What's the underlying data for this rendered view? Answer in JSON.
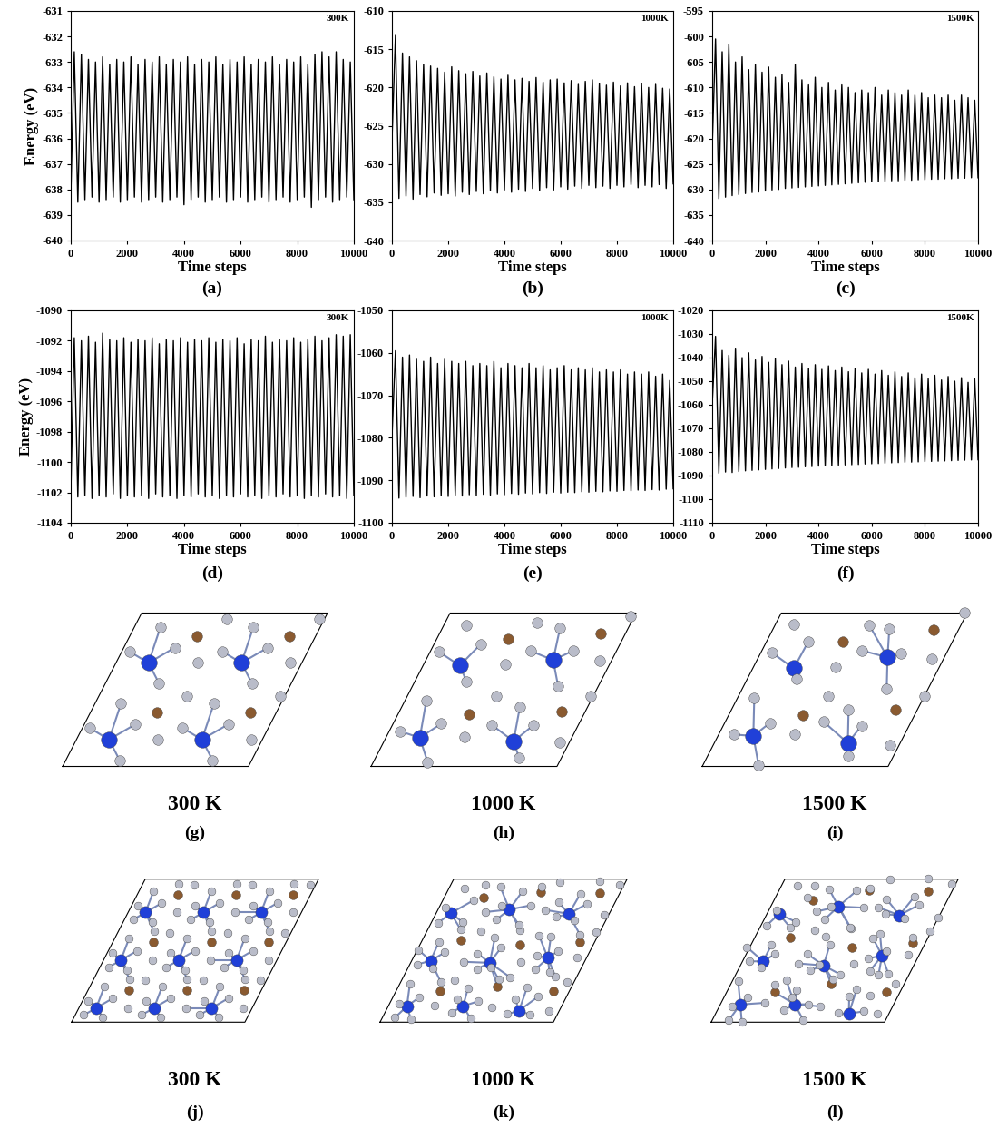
{
  "chart_data": [
    {
      "type": "line",
      "panel": "(a)",
      "annotation": "300K",
      "x_label": "Time steps",
      "y_label": "Energy (eV)",
      "color": "#000000",
      "xlim": [
        0,
        10000
      ],
      "xticks": [
        0,
        2000,
        4000,
        6000,
        8000,
        10000
      ],
      "ylim": [
        -640,
        -631
      ],
      "yticks": [
        -640,
        -639,
        -638,
        -637,
        -636,
        -635,
        -634,
        -633,
        -632,
        -631
      ],
      "x": [
        0,
        125,
        250,
        375,
        500,
        625,
        750,
        875,
        1000,
        1125,
        1250,
        1375,
        1500,
        1625,
        1750,
        1875,
        2000,
        2125,
        2250,
        2375,
        2500,
        2625,
        2750,
        2875,
        3000,
        3125,
        3250,
        3375,
        3500,
        3625,
        3750,
        3875,
        4000,
        4125,
        4250,
        4375,
        4500,
        4625,
        4750,
        4875,
        5000,
        5125,
        5250,
        5375,
        5500,
        5625,
        5750,
        5875,
        6000,
        6125,
        6250,
        6375,
        6500,
        6625,
        6750,
        6875,
        7000,
        7125,
        7250,
        7375,
        7500,
        7625,
        7750,
        7875,
        8000,
        8125,
        8250,
        8375,
        8500,
        8625,
        8750,
        8875,
        9000,
        9125,
        9250,
        9375,
        9500,
        9625,
        9750,
        9875,
        10000
      ],
      "values": [
        -638.3,
        -632.6,
        -638.5,
        -632.7,
        -638.4,
        -632.9,
        -638.3,
        -633.0,
        -638.5,
        -632.8,
        -638.4,
        -633.1,
        -638.3,
        -632.9,
        -638.5,
        -633.0,
        -638.4,
        -632.8,
        -638.3,
        -633.1,
        -638.5,
        -632.9,
        -638.4,
        -633.0,
        -638.3,
        -632.8,
        -638.5,
        -633.1,
        -638.4,
        -632.9,
        -638.3,
        -633.0,
        -638.6,
        -632.8,
        -638.4,
        -633.1,
        -638.3,
        -632.9,
        -638.5,
        -633.0,
        -638.4,
        -632.8,
        -638.3,
        -633.1,
        -638.5,
        -632.9,
        -638.4,
        -633.0,
        -638.3,
        -632.8,
        -638.5,
        -633.1,
        -638.4,
        -632.9,
        -638.3,
        -633.0,
        -638.5,
        -632.8,
        -638.4,
        -633.1,
        -638.3,
        -632.9,
        -638.5,
        -633.0,
        -638.4,
        -632.8,
        -638.3,
        -633.1,
        -638.7,
        -632.7,
        -638.4,
        -632.6,
        -638.3,
        -632.8,
        -638.5,
        -632.6,
        -638.4,
        -632.9,
        -638.3,
        -633.0,
        -638.4
      ]
    },
    {
      "type": "line",
      "panel": "(b)",
      "annotation": "1000K",
      "x_label": "Time steps",
      "color": "#000000",
      "xlim": [
        0,
        10000
      ],
      "xticks": [
        0,
        2000,
        4000,
        6000,
        8000,
        10000
      ],
      "ylim": [
        -640,
        -610
      ],
      "yticks": [
        -640,
        -635,
        -630,
        -625,
        -620,
        -615,
        -610
      ],
      "x": [
        0,
        125,
        250,
        375,
        500,
        625,
        750,
        875,
        1000,
        1125,
        1250,
        1375,
        1500,
        1625,
        1750,
        1875,
        2000,
        2125,
        2250,
        2375,
        2500,
        2625,
        2750,
        2875,
        3000,
        3125,
        3250,
        3375,
        3500,
        3625,
        3750,
        3875,
        4000,
        4125,
        4250,
        4375,
        4500,
        4625,
        4750,
        4875,
        5000,
        5125,
        5250,
        5375,
        5500,
        5625,
        5750,
        5875,
        6000,
        6125,
        6250,
        6375,
        6500,
        6625,
        6750,
        6875,
        7000,
        7125,
        7250,
        7375,
        7500,
        7625,
        7750,
        7875,
        8000,
        8125,
        8250,
        8375,
        8500,
        8625,
        8750,
        8875,
        9000,
        9125,
        9250,
        9375,
        9500,
        9625,
        9750,
        9875,
        10000
      ],
      "values": [
        -627.0,
        -613.2,
        -634.5,
        -615.5,
        -634.2,
        -616.0,
        -634.6,
        -616.5,
        -634.0,
        -617.0,
        -634.3,
        -617.2,
        -633.8,
        -617.5,
        -634.1,
        -618.0,
        -633.9,
        -617.3,
        -634.2,
        -617.8,
        -633.7,
        -618.2,
        -634.0,
        -617.9,
        -633.6,
        -618.5,
        -633.9,
        -618.1,
        -633.5,
        -618.6,
        -633.8,
        -618.9,
        -633.4,
        -618.4,
        -633.7,
        -619.0,
        -633.3,
        -618.8,
        -633.6,
        -619.2,
        -633.2,
        -618.7,
        -633.5,
        -619.3,
        -633.1,
        -619.0,
        -633.4,
        -618.9,
        -633.0,
        -619.4,
        -633.3,
        -619.1,
        -632.9,
        -619.6,
        -633.2,
        -619.2,
        -632.8,
        -619.0,
        -633.1,
        -619.5,
        -632.9,
        -619.7,
        -633.2,
        -619.3,
        -632.8,
        -619.8,
        -633.0,
        -619.4,
        -632.7,
        -619.9,
        -633.1,
        -619.5,
        -632.8,
        -620.0,
        -633.0,
        -619.6,
        -632.7,
        -620.1,
        -633.2,
        -620.2,
        -632.6
      ]
    },
    {
      "type": "line",
      "panel": "(c)",
      "annotation": "1500K",
      "x_label": "Time steps",
      "color": "#000000",
      "xlim": [
        0,
        10000
      ],
      "xticks": [
        0,
        2000,
        4000,
        6000,
        8000,
        10000
      ],
      "ylim": [
        -640,
        -595
      ],
      "yticks": [
        -640,
        -635,
        -630,
        -625,
        -620,
        -615,
        -610,
        -605,
        -600,
        -595
      ],
      "x": [
        0,
        125,
        250,
        375,
        500,
        625,
        750,
        875,
        1000,
        1125,
        1250,
        1375,
        1500,
        1625,
        1750,
        1875,
        2000,
        2125,
        2250,
        2375,
        2500,
        2625,
        2750,
        2875,
        3000,
        3125,
        3250,
        3375,
        3500,
        3625,
        3750,
        3875,
        4000,
        4125,
        4250,
        4375,
        4500,
        4625,
        4750,
        4875,
        5000,
        5125,
        5250,
        5375,
        5500,
        5625,
        5750,
        5875,
        6000,
        6125,
        6250,
        6375,
        6500,
        6625,
        6750,
        6875,
        7000,
        7125,
        7250,
        7375,
        7500,
        7625,
        7750,
        7875,
        8000,
        8125,
        8250,
        8375,
        8500,
        8625,
        8750,
        8875,
        9000,
        9125,
        9250,
        9375,
        9500,
        9625,
        9750,
        9875,
        10000
      ],
      "values": [
        -622.0,
        -600.5,
        -631.8,
        -603.0,
        -631.5,
        -601.5,
        -631.2,
        -605.0,
        -631.0,
        -604.0,
        -630.8,
        -606.5,
        -630.6,
        -605.5,
        -630.5,
        -607.0,
        -630.3,
        -606.0,
        -630.1,
        -608.0,
        -630.0,
        -607.5,
        -629.8,
        -609.0,
        -629.7,
        -605.5,
        -629.6,
        -608.5,
        -629.5,
        -609.5,
        -629.4,
        -608.0,
        -629.3,
        -610.0,
        -629.2,
        -609.0,
        -629.1,
        -610.5,
        -629.0,
        -609.5,
        -628.9,
        -610.0,
        -628.8,
        -611.0,
        -628.7,
        -610.5,
        -628.6,
        -611.0,
        -628.5,
        -610.0,
        -628.5,
        -611.5,
        -628.4,
        -610.5,
        -628.3,
        -611.0,
        -628.3,
        -611.5,
        -628.2,
        -610.5,
        -628.2,
        -611.5,
        -628.1,
        -611.0,
        -628.1,
        -612.0,
        -628.0,
        -611.5,
        -628.0,
        -612.0,
        -627.9,
        -611.5,
        -627.9,
        -612.5,
        -627.8,
        -611.5,
        -627.8,
        -612.0,
        -627.7,
        -612.5,
        -627.7
      ]
    },
    {
      "type": "line",
      "panel": "(d)",
      "annotation": "300K",
      "x_label": "Time steps",
      "y_label": "Energy (eV)",
      "color": "#000000",
      "xlim": [
        0,
        10000
      ],
      "xticks": [
        0,
        2000,
        4000,
        6000,
        8000,
        10000
      ],
      "ylim": [
        -1104,
        -1090
      ],
      "yticks": [
        -1104,
        -1102,
        -1100,
        -1098,
        -1096,
        -1094,
        -1092,
        -1090
      ],
      "x": [
        0,
        125,
        250,
        375,
        500,
        625,
        750,
        875,
        1000,
        1125,
        1250,
        1375,
        1500,
        1625,
        1750,
        1875,
        2000,
        2125,
        2250,
        2375,
        2500,
        2625,
        2750,
        2875,
        3000,
        3125,
        3250,
        3375,
        3500,
        3625,
        3750,
        3875,
        4000,
        4125,
        4250,
        4375,
        4500,
        4625,
        4750,
        4875,
        5000,
        5125,
        5250,
        5375,
        5500,
        5625,
        5750,
        5875,
        6000,
        6125,
        6250,
        6375,
        6500,
        6625,
        6750,
        6875,
        7000,
        7125,
        7250,
        7375,
        7500,
        7625,
        7750,
        7875,
        8000,
        8125,
        8250,
        8375,
        8500,
        8625,
        8750,
        8875,
        9000,
        9125,
        9250,
        9375,
        9500,
        9625,
        9750,
        9875,
        10000
      ],
      "values": [
        -1102.1,
        -1091.8,
        -1102.3,
        -1092.0,
        -1102.2,
        -1091.7,
        -1102.4,
        -1092.1,
        -1102.2,
        -1091.5,
        -1102.3,
        -1091.9,
        -1102.1,
        -1092.0,
        -1102.4,
        -1091.8,
        -1102.2,
        -1092.1,
        -1102.3,
        -1091.9,
        -1102.2,
        -1092.0,
        -1102.4,
        -1091.8,
        -1102.1,
        -1092.2,
        -1102.3,
        -1091.9,
        -1102.2,
        -1092.0,
        -1102.4,
        -1091.8,
        -1102.2,
        -1092.1,
        -1102.3,
        -1091.9,
        -1102.1,
        -1092.0,
        -1102.3,
        -1091.8,
        -1102.2,
        -1092.1,
        -1102.4,
        -1091.9,
        -1102.2,
        -1092.0,
        -1102.3,
        -1091.8,
        -1102.1,
        -1092.2,
        -1102.3,
        -1091.9,
        -1102.2,
        -1092.0,
        -1102.4,
        -1091.7,
        -1102.2,
        -1092.1,
        -1102.3,
        -1091.9,
        -1102.1,
        -1092.0,
        -1102.3,
        -1091.8,
        -1102.2,
        -1092.1,
        -1102.4,
        -1091.9,
        -1102.2,
        -1091.7,
        -1102.3,
        -1092.0,
        -1102.1,
        -1091.8,
        -1102.3,
        -1091.6,
        -1102.2,
        -1091.7,
        -1102.4,
        -1091.6,
        -1102.2
      ]
    },
    {
      "type": "line",
      "panel": "(e)",
      "annotation": "1000K",
      "x_label": "Time steps",
      "color": "#000000",
      "xlim": [
        0,
        10000
      ],
      "xticks": [
        0,
        2000,
        4000,
        6000,
        8000,
        10000
      ],
      "ylim": [
        -1100,
        -1050
      ],
      "yticks": [
        -1100,
        -1090,
        -1080,
        -1070,
        -1060,
        -1050
      ],
      "x": [
        0,
        125,
        250,
        375,
        500,
        625,
        750,
        875,
        1000,
        1125,
        1250,
        1375,
        1500,
        1625,
        1750,
        1875,
        2000,
        2125,
        2250,
        2375,
        2500,
        2625,
        2750,
        2875,
        3000,
        3125,
        3250,
        3375,
        3500,
        3625,
        3750,
        3875,
        4000,
        4125,
        4250,
        4375,
        4500,
        4625,
        4750,
        4875,
        5000,
        5125,
        5250,
        5375,
        5500,
        5625,
        5750,
        5875,
        6000,
        6125,
        6250,
        6375,
        6500,
        6625,
        6750,
        6875,
        7000,
        7125,
        7250,
        7375,
        7500,
        7625,
        7750,
        7875,
        8000,
        8125,
        8250,
        8375,
        8500,
        8625,
        8750,
        8875,
        9000,
        9125,
        9250,
        9375,
        9500,
        9625,
        9750,
        9875,
        10000
      ],
      "values": [
        -1080.0,
        -1059.5,
        -1094.2,
        -1061.0,
        -1094.0,
        -1060.5,
        -1093.8,
        -1061.5,
        -1094.1,
        -1062.0,
        -1093.7,
        -1061.0,
        -1093.9,
        -1062.5,
        -1093.6,
        -1061.5,
        -1093.8,
        -1062.0,
        -1093.5,
        -1062.5,
        -1093.7,
        -1062.0,
        -1093.4,
        -1063.0,
        -1093.6,
        -1062.5,
        -1093.3,
        -1063.0,
        -1093.5,
        -1062.0,
        -1093.2,
        -1063.5,
        -1093.4,
        -1062.5,
        -1093.1,
        -1063.0,
        -1093.3,
        -1063.5,
        -1093.0,
        -1062.5,
        -1093.2,
        -1063.5,
        -1092.9,
        -1063.0,
        -1093.1,
        -1064.0,
        -1092.8,
        -1063.5,
        -1093.0,
        -1063.0,
        -1092.8,
        -1064.0,
        -1092.9,
        -1063.5,
        -1092.7,
        -1064.0,
        -1092.8,
        -1063.5,
        -1092.6,
        -1064.5,
        -1092.7,
        -1064.0,
        -1092.5,
        -1064.5,
        -1092.6,
        -1064.0,
        -1092.4,
        -1065.0,
        -1092.5,
        -1064.5,
        -1092.3,
        -1065.0,
        -1092.4,
        -1064.5,
        -1092.2,
        -1065.5,
        -1092.3,
        -1065.0,
        -1092.1,
        -1066.5,
        -1092.0
      ]
    },
    {
      "type": "line",
      "panel": "(f)",
      "annotation": "1500K",
      "x_label": "Time steps",
      "color": "#000000",
      "xlim": [
        0,
        10000
      ],
      "xticks": [
        0,
        2000,
        4000,
        6000,
        8000,
        10000
      ],
      "ylim": [
        -1110,
        -1020
      ],
      "yticks": [
        -1110,
        -1100,
        -1090,
        -1080,
        -1070,
        -1060,
        -1050,
        -1040,
        -1030,
        -1020
      ],
      "x": [
        0,
        125,
        250,
        375,
        500,
        625,
        750,
        875,
        1000,
        1125,
        1250,
        1375,
        1500,
        1625,
        1750,
        1875,
        2000,
        2125,
        2250,
        2375,
        2500,
        2625,
        2750,
        2875,
        3000,
        3125,
        3250,
        3375,
        3500,
        3625,
        3750,
        3875,
        4000,
        4125,
        4250,
        4375,
        4500,
        4625,
        4750,
        4875,
        5000,
        5125,
        5250,
        5375,
        5500,
        5625,
        5750,
        5875,
        6000,
        6125,
        6250,
        6375,
        6500,
        6625,
        6750,
        6875,
        7000,
        7125,
        7250,
        7375,
        7500,
        7625,
        7750,
        7875,
        8000,
        8125,
        8250,
        8375,
        8500,
        8625,
        8750,
        8875,
        9000,
        9125,
        9250,
        9375,
        9500,
        9625,
        9750,
        9875,
        10000
      ],
      "values": [
        -1060.0,
        -1031.0,
        -1089.0,
        -1037.0,
        -1088.5,
        -1039.0,
        -1088.7,
        -1036.0,
        -1088.3,
        -1040.0,
        -1088.0,
        -1038.0,
        -1087.8,
        -1041.0,
        -1087.6,
        -1039.5,
        -1087.4,
        -1042.0,
        -1087.2,
        -1040.5,
        -1087.0,
        -1043.0,
        -1086.8,
        -1041.5,
        -1086.6,
        -1044.0,
        -1086.5,
        -1042.5,
        -1086.3,
        -1044.5,
        -1086.2,
        -1043.0,
        -1086.0,
        -1045.0,
        -1085.9,
        -1043.5,
        -1085.8,
        -1045.5,
        -1085.6,
        -1044.0,
        -1085.5,
        -1046.0,
        -1085.4,
        -1044.5,
        -1085.3,
        -1046.5,
        -1085.1,
        -1045.0,
        -1085.0,
        -1047.0,
        -1084.9,
        -1045.5,
        -1084.8,
        -1047.5,
        -1084.6,
        -1046.0,
        -1084.5,
        -1048.0,
        -1084.4,
        -1046.5,
        -1084.3,
        -1048.5,
        -1084.2,
        -1047.0,
        -1084.1,
        -1049.0,
        -1084.0,
        -1047.5,
        -1083.9,
        -1049.5,
        -1083.8,
        -1048.0,
        -1083.7,
        -1050.0,
        -1083.6,
        -1048.5,
        -1083.5,
        -1050.5,
        -1083.4,
        -1049.0,
        -1083.3
      ]
    }
  ],
  "structures": [
    {
      "panel": "(g)",
      "label": "300 K"
    },
    {
      "panel": "(h)",
      "label": "1000 K"
    },
    {
      "panel": "(i)",
      "label": "1500 K"
    },
    {
      "panel": "(j)",
      "label": "300 K"
    },
    {
      "panel": "(k)",
      "label": "1000 K"
    },
    {
      "panel": "(l)",
      "label": "1500 K"
    }
  ]
}
